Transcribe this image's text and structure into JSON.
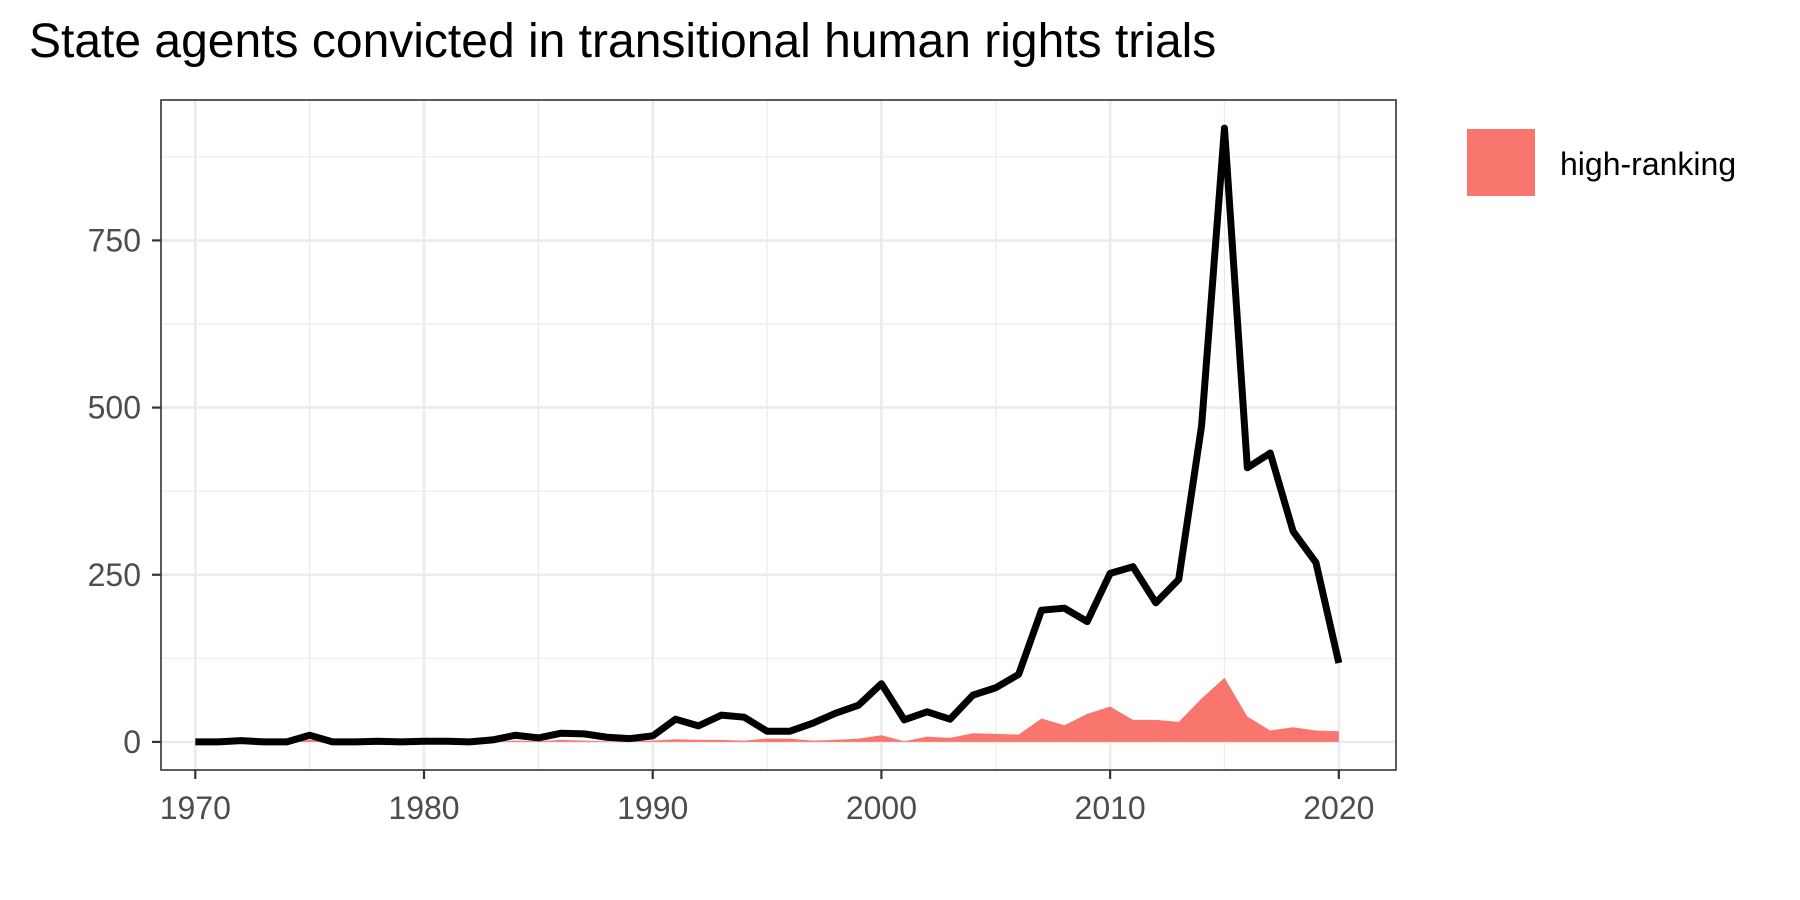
{
  "chart_data": {
    "type": "area",
    "title": "State agents convicted in transitional human rights trials",
    "xlabel": "",
    "ylabel": "",
    "x_ticks": [
      1970,
      1980,
      1990,
      2000,
      2010,
      2020
    ],
    "y_ticks": [
      0,
      250,
      500,
      750
    ],
    "xlim": [
      1968.5,
      2022.5
    ],
    "ylim": [
      -42,
      960
    ],
    "grid": true,
    "legend_position": "right",
    "series": [
      {
        "type": "area",
        "name": "high-ranking",
        "color": "#F8766D",
        "x": [
          1970,
          1971,
          1972,
          1973,
          1974,
          1975,
          1976,
          1977,
          1978,
          1979,
          1980,
          1981,
          1982,
          1983,
          1984,
          1985,
          1986,
          1987,
          1988,
          1989,
          1990,
          1991,
          1992,
          1993,
          1994,
          1995,
          1996,
          1997,
          1998,
          1999,
          2000,
          2001,
          2002,
          2003,
          2004,
          2005,
          2006,
          2007,
          2008,
          2009,
          2010,
          2011,
          2012,
          2013,
          2014,
          2015,
          2016,
          2017,
          2018,
          2019,
          2020
        ],
        "values": [
          0,
          0,
          0,
          0,
          0,
          3,
          0,
          0,
          0,
          0,
          0,
          0,
          0,
          0,
          2,
          1,
          3,
          2,
          1,
          1,
          2,
          4,
          3,
          3,
          2,
          5,
          5,
          2,
          3,
          5,
          10,
          1,
          8,
          6,
          13,
          12,
          11,
          35,
          25,
          42,
          53,
          33,
          33,
          30,
          65,
          96,
          38,
          17,
          22,
          17,
          16
        ]
      },
      {
        "type": "line",
        "color": "#000000",
        "x": [
          1970,
          1971,
          1972,
          1973,
          1974,
          1975,
          1976,
          1977,
          1978,
          1979,
          1980,
          1981,
          1982,
          1983,
          1984,
          1985,
          1986,
          1987,
          1988,
          1989,
          1990,
          1991,
          1992,
          1993,
          1994,
          1995,
          1996,
          1997,
          1998,
          1999,
          2000,
          2001,
          2002,
          2003,
          2004,
          2005,
          2006,
          2007,
          2008,
          2009,
          2010,
          2011,
          2012,
          2013,
          2014,
          2015,
          2016,
          2017,
          2018,
          2019,
          2020
        ],
        "values": [
          0,
          0,
          2,
          0,
          0,
          10,
          0,
          0,
          1,
          0,
          1,
          1,
          0,
          3,
          10,
          6,
          13,
          12,
          7,
          5,
          9,
          34,
          24,
          40,
          37,
          16,
          16,
          28,
          43,
          55,
          87,
          33,
          45,
          34,
          70,
          81,
          101,
          197,
          200,
          180,
          252,
          262,
          208,
          243,
          473,
          918,
          410,
          432,
          315,
          268,
          118
        ]
      }
    ]
  }
}
